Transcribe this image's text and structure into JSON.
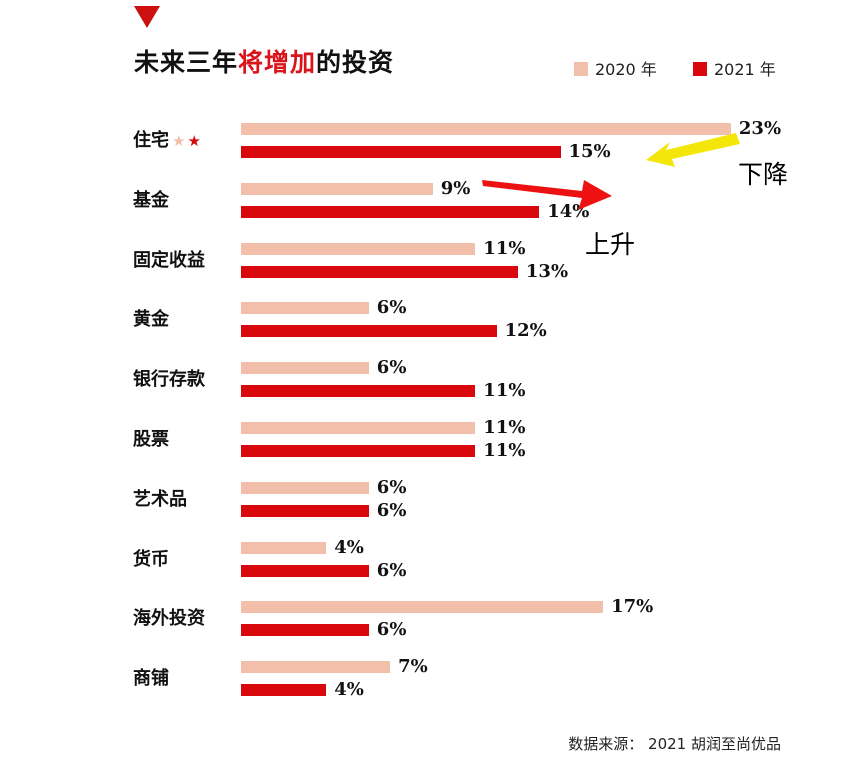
{
  "title": {
    "prefix": "未来三年",
    "highlight": "将增加",
    "suffix": "的投资"
  },
  "legend": [
    {
      "label": "2020 年",
      "color": "#f2c0aa"
    },
    {
      "label": "2021 年",
      "color": "#d9080c"
    }
  ],
  "chart_data": {
    "type": "bar",
    "orientation": "horizontal",
    "categories": [
      "住宅",
      "基金",
      "固定收益",
      "黄金",
      "银行存款",
      "股票",
      "艺术品",
      "货币",
      "海外投资",
      "商铺"
    ],
    "series": [
      {
        "name": "2020 年",
        "color": "#f2c0aa",
        "values": [
          23,
          9,
          11,
          6,
          6,
          11,
          6,
          4,
          17,
          7
        ]
      },
      {
        "name": "2021 年",
        "color": "#d9080c",
        "values": [
          15,
          14,
          13,
          12,
          11,
          11,
          6,
          6,
          6,
          4
        ]
      }
    ],
    "labels": [
      [
        "23%",
        "15%"
      ],
      [
        "9%",
        "14%"
      ],
      [
        "11%",
        "13%"
      ],
      [
        "6%",
        "12%"
      ],
      [
        "6%",
        "11%"
      ],
      [
        "11%",
        "11%"
      ],
      [
        "6%",
        "6%"
      ],
      [
        "4%",
        "6%"
      ],
      [
        "17%",
        "6%"
      ],
      [
        "7%",
        "4%"
      ]
    ],
    "value_unit": "%",
    "star_marks": [
      "★",
      "★"
    ],
    "star_colors": [
      "#f2c0aa",
      "#d9080c"
    ],
    "annotations": [
      {
        "text": "下降",
        "color": "#f5e60a"
      },
      {
        "text": "上升",
        "color": "#ee1111"
      }
    ]
  },
  "source": "数据来源： 2021 胡润至尚优品"
}
